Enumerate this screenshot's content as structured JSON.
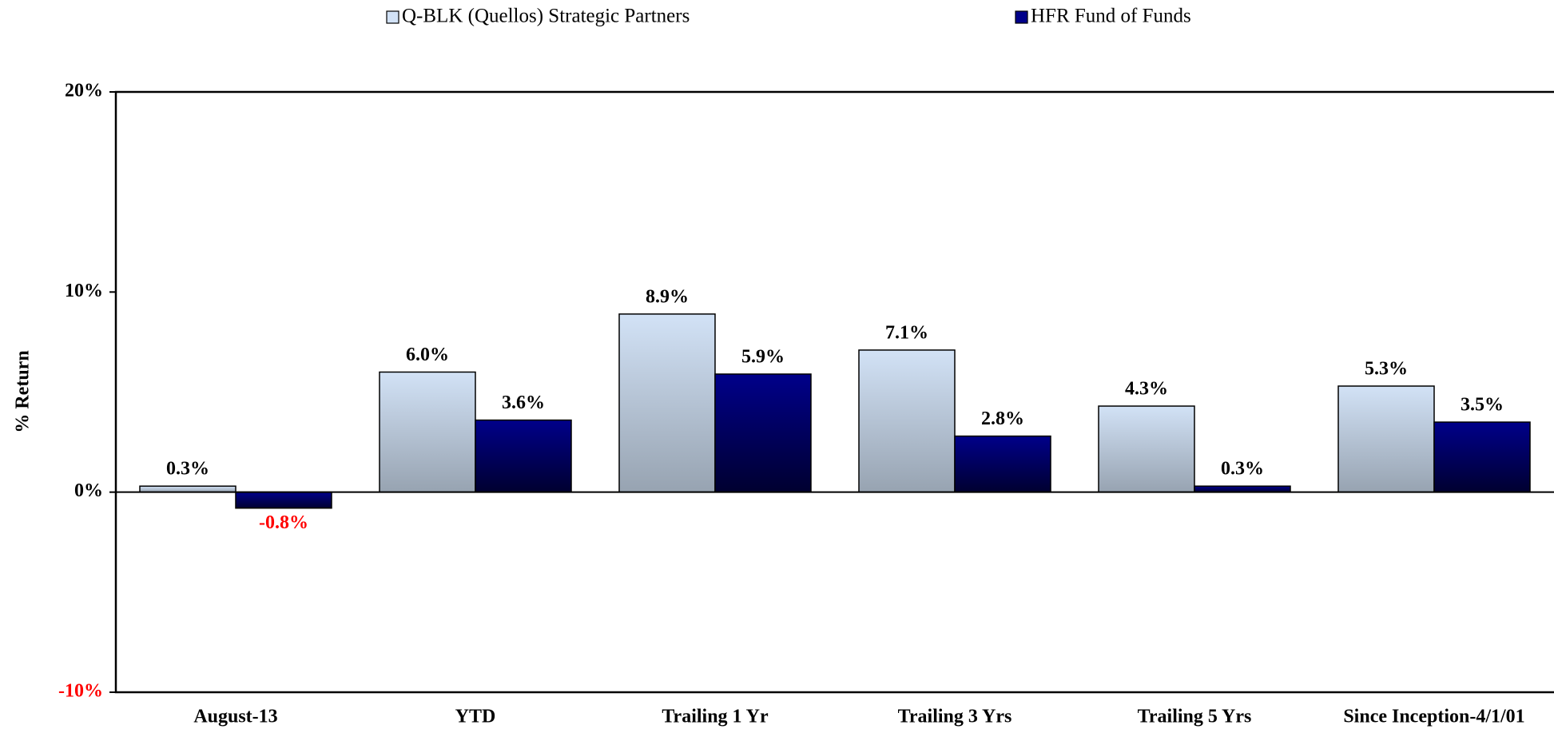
{
  "chart_data": {
    "type": "bar",
    "y_label": "% Return",
    "categories": [
      "August-13",
      "YTD",
      "Trailing 1 Yr",
      "Trailing 3 Yrs",
      "Trailing 5 Yrs",
      "Since Inception-4/1/01"
    ],
    "series": [
      {
        "name": "Q-BLK (Quellos) Strategic Partners",
        "color": "#d2e2f6",
        "values": [
          0.3,
          6.0,
          8.9,
          7.1,
          4.3,
          5.3
        ],
        "value_labels": [
          "0.3%",
          "6.0%",
          "8.9%",
          "7.1%",
          "4.3%",
          "5.3%"
        ]
      },
      {
        "name": "HFR Fund of Funds",
        "color": "#00008a",
        "values": [
          -0.8,
          3.6,
          5.9,
          2.8,
          0.3,
          3.5
        ],
        "value_labels": [
          "-0.8%",
          "3.6%",
          "5.9%",
          "2.8%",
          "0.3%",
          "3.5%"
        ]
      }
    ],
    "ylim": [
      -10,
      20
    ],
    "yticks": [
      {
        "value": -10,
        "label": "-10%"
      },
      {
        "value": 0,
        "label": "0%"
      },
      {
        "value": 10,
        "label": "10%"
      },
      {
        "value": 20,
        "label": "20%"
      }
    ],
    "negative_color": "#ff0000",
    "grid": false,
    "legend": "top"
  }
}
